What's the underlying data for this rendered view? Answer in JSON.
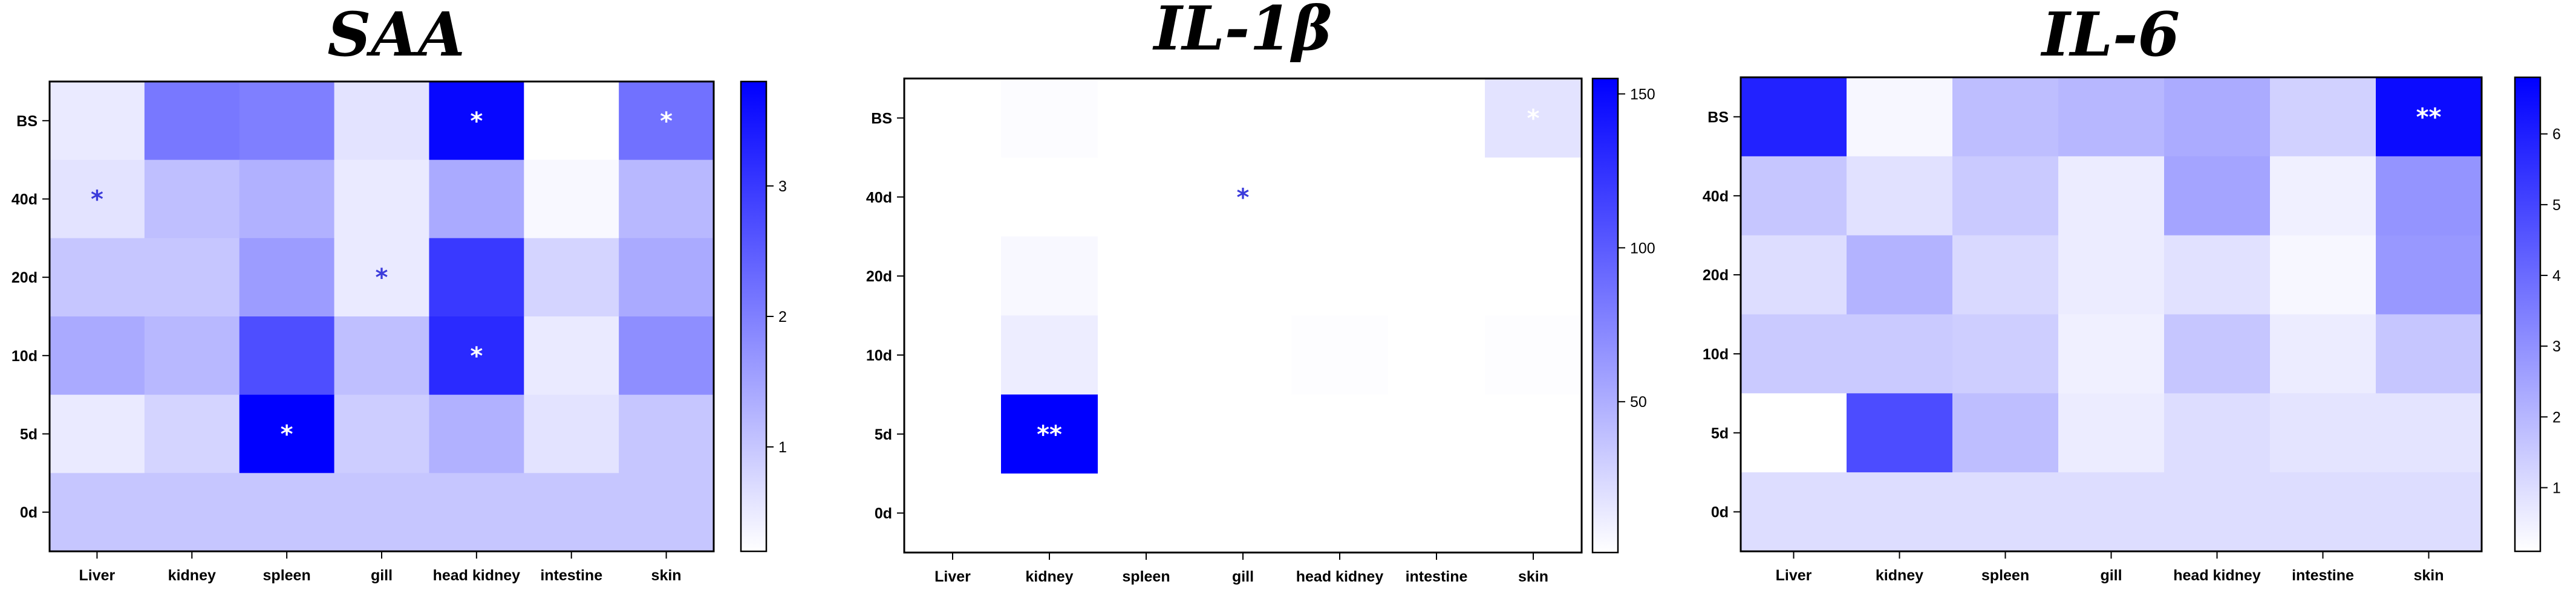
{
  "palette": {
    "low": "#ffffff",
    "high": "#0000ff"
  },
  "chart_data": [
    {
      "type": "heatmap",
      "title": "SAA",
      "x_categories": [
        "Liver",
        "kidney",
        "spleen",
        "gill",
        "head kidney",
        "intestine",
        "skin"
      ],
      "y_categories": [
        "BS",
        "40d",
        "20d",
        "10d",
        "5d",
        "0d"
      ],
      "values": [
        [
          0.5,
          2.1,
          2.0,
          0.6,
          3.7,
          0.2,
          2.2
        ],
        [
          0.6,
          1.1,
          1.3,
          0.5,
          1.4,
          0.3,
          1.2
        ],
        [
          1.0,
          1.0,
          1.6,
          0.5,
          3.0,
          0.8,
          1.4
        ],
        [
          1.4,
          1.2,
          2.7,
          1.1,
          3.2,
          0.5,
          1.8
        ],
        [
          0.5,
          0.8,
          3.8,
          0.9,
          1.3,
          0.6,
          1.0
        ],
        [
          1.0,
          1.0,
          1.0,
          1.0,
          1.0,
          1.0,
          1.0
        ]
      ],
      "annotations": [
        {
          "row": 0,
          "col": 4,
          "text": "*",
          "color": "#ffffff"
        },
        {
          "row": 0,
          "col": 6,
          "text": "*",
          "color": "#ffffff"
        },
        {
          "row": 1,
          "col": 0,
          "text": "*",
          "color": "#3b3bdb"
        },
        {
          "row": 2,
          "col": 3,
          "text": "*",
          "color": "#3b3bdb"
        },
        {
          "row": 3,
          "col": 4,
          "text": "*",
          "color": "#ffffff"
        },
        {
          "row": 4,
          "col": 2,
          "text": "*",
          "color": "#ffffff"
        }
      ],
      "colorbar": {
        "min": 0.2,
        "max": 3.8,
        "ticks": [
          1,
          2,
          3
        ],
        "tick_labels": [
          "1",
          "2",
          "3"
        ]
      }
    },
    {
      "type": "heatmap",
      "title": "IL-1β",
      "x_categories": [
        "Liver",
        "kidney",
        "spleen",
        "gill",
        "head kidney",
        "intestine",
        "skin"
      ],
      "y_categories": [
        "BS",
        "40d",
        "20d",
        "10d",
        "5d",
        "0d"
      ],
      "values": [
        [
          1,
          3,
          1,
          1,
          1,
          1,
          18
        ],
        [
          1,
          1,
          1,
          1,
          1,
          1,
          1
        ],
        [
          1,
          5,
          1,
          1,
          1,
          1,
          1
        ],
        [
          1,
          12,
          1,
          1,
          2,
          1,
          2
        ],
        [
          1,
          155,
          1,
          1,
          1,
          1,
          1
        ],
        [
          1,
          1,
          1,
          1,
          1,
          1,
          1
        ]
      ],
      "annotations": [
        {
          "row": 0,
          "col": 6,
          "text": "*",
          "color": "#ffffff"
        },
        {
          "row": 1,
          "col": 3,
          "text": "*",
          "color": "#3b3bdb"
        },
        {
          "row": 4,
          "col": 1,
          "text": "**",
          "color": "#ffffff"
        }
      ],
      "colorbar": {
        "min": 1,
        "max": 155,
        "ticks": [
          50,
          100,
          150
        ],
        "tick_labels": [
          "50",
          "100",
          "150"
        ]
      }
    },
    {
      "type": "heatmap",
      "title": "IL-6",
      "x_categories": [
        "Liver",
        "kidney",
        "spleen",
        "gill",
        "head kidney",
        "intestine",
        "skin"
      ],
      "y_categories": [
        "BS",
        "40d",
        "20d",
        "10d",
        "5d",
        "0d"
      ],
      "values": [
        [
          5.9,
          0.3,
          1.8,
          2.0,
          2.3,
          1.3,
          6.5
        ],
        [
          1.6,
          0.9,
          1.5,
          0.6,
          2.5,
          0.5,
          2.9
        ],
        [
          1.0,
          2.1,
          1.1,
          0.6,
          0.9,
          0.3,
          2.8
        ],
        [
          1.5,
          1.5,
          1.4,
          0.5,
          1.6,
          0.6,
          1.6
        ],
        [
          0.1,
          4.8,
          1.8,
          0.6,
          1.0,
          0.8,
          0.8
        ],
        [
          1.0,
          1.0,
          1.0,
          1.0,
          1.0,
          1.0,
          1.0
        ]
      ],
      "annotations": [
        {
          "row": 0,
          "col": 6,
          "text": "**",
          "color": "#ffffff"
        }
      ],
      "colorbar": {
        "min": 0.1,
        "max": 6.8,
        "ticks": [
          1,
          2,
          3,
          4,
          5,
          6
        ],
        "tick_labels": [
          "1",
          "2",
          "3",
          "4",
          "5",
          "6"
        ]
      }
    }
  ]
}
